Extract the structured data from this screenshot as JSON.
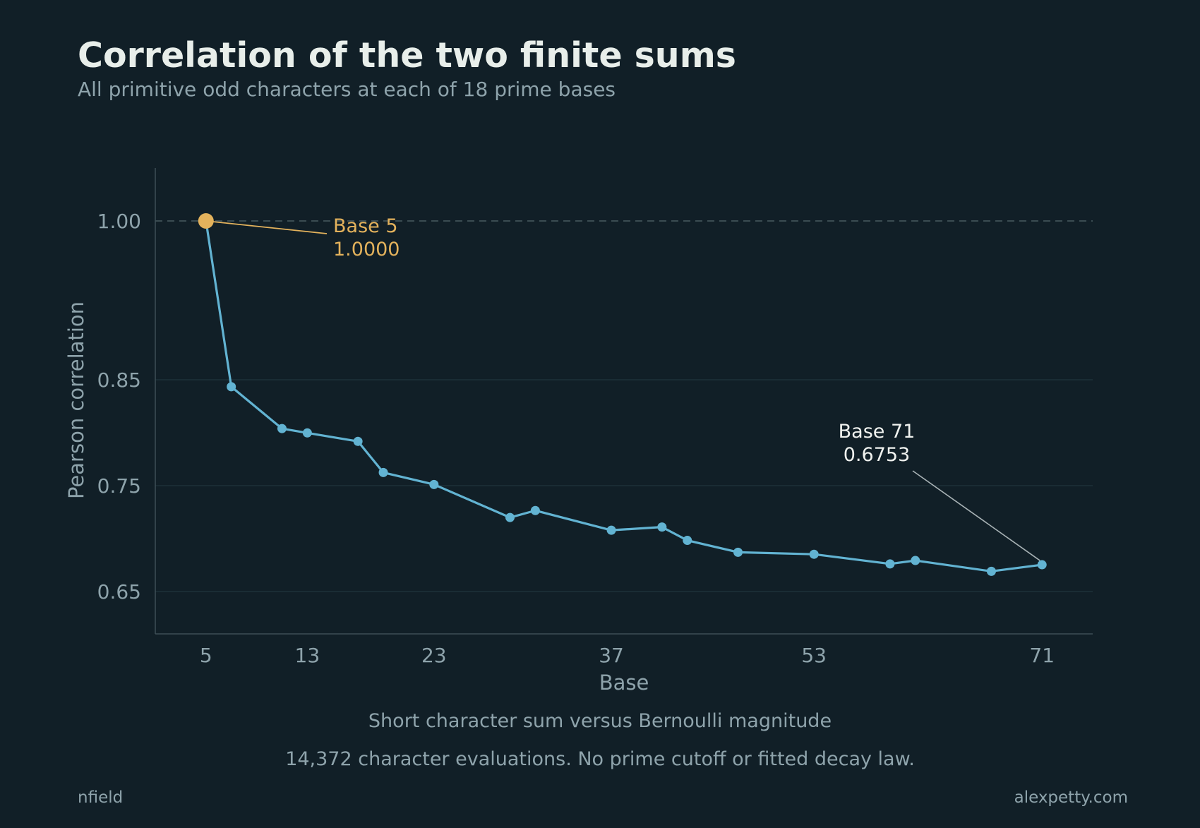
{
  "header": {
    "title": "Correlation of the two finite sums",
    "subtitle": "All primitive odd characters at each of 18 prime bases"
  },
  "chart_data": {
    "type": "line",
    "xlabel": "Base",
    "ylabel": "Pearson correlation",
    "x_ticks": [
      5,
      13,
      23,
      37,
      53,
      71
    ],
    "y_ticks": [
      "0.65",
      "0.75",
      "0.85",
      "1.00"
    ],
    "xlim": [
      1,
      75
    ],
    "ylim": [
      0.61,
      1.05
    ],
    "reference_line": 1.0,
    "grid": "horizontal",
    "series": [
      {
        "x": [
          5,
          7,
          11,
          13,
          17,
          19,
          23,
          29,
          31,
          37,
          41,
          43,
          47,
          53,
          59,
          61,
          67,
          71
        ],
        "y": [
          1.0,
          0.8434,
          0.8039,
          0.7998,
          0.7918,
          0.7624,
          0.7511,
          0.7199,
          0.7265,
          0.7079,
          0.7109,
          0.6983,
          0.6871,
          0.6852,
          0.6761,
          0.6793,
          0.6691,
          0.6753
        ]
      }
    ],
    "annotations": [
      {
        "line1": "Base 5",
        "line2": "1.0000",
        "x": 5,
        "y": 1.0,
        "color": "#e3b25c"
      },
      {
        "line1": "Base 71",
        "line2": "0.6753",
        "x": 71,
        "y": 0.6753,
        "color": "#f0f2ef"
      }
    ]
  },
  "captions": {
    "line1": "Short character sum versus Bernoulli magnitude",
    "line2": "14,372 character evaluations. No prime cutoff or fitted decay law."
  },
  "footer": {
    "left": "nfield",
    "right": "alexpetty.com"
  },
  "colors": {
    "background": "#111f27",
    "series": "#62b3d2",
    "highlight": "#e3b25c",
    "text_muted": "#8ea3ab",
    "text_bright": "#e8eeea"
  }
}
